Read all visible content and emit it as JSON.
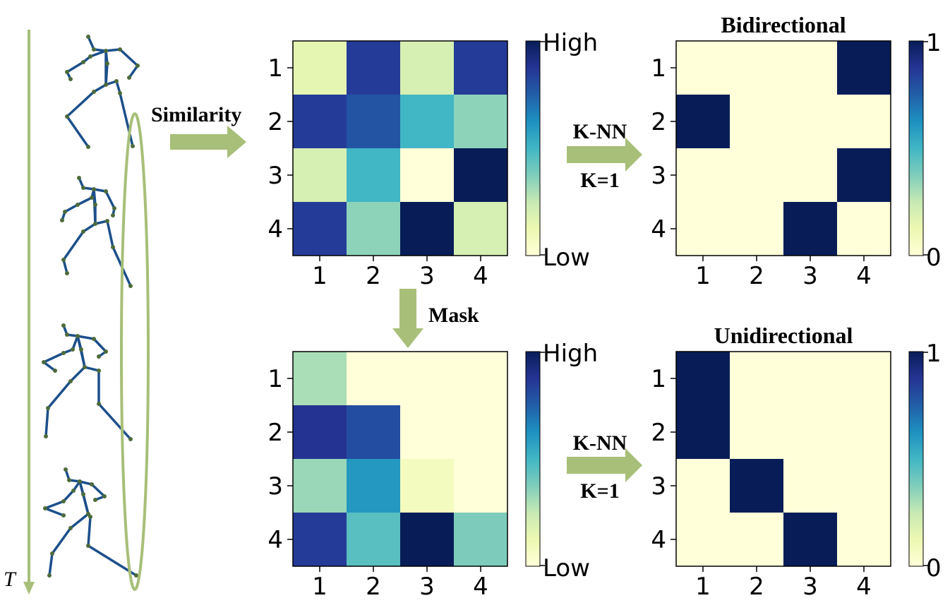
{
  "time_axis": {
    "label": "T"
  },
  "arrows": {
    "similarity": "Similarity",
    "mask": "Mask",
    "knn_top": {
      "line1": "K-NN",
      "line2": "K=1"
    },
    "knn_bottom": {
      "line1": "K-NN",
      "line2": "K=1"
    }
  },
  "colors": {
    "arrow_green": "#a7bf78",
    "skeleton_bone": "#1c4f8b",
    "skeleton_joint": "#4d6b3a",
    "colormap": [
      "#ffffd9",
      "#edf8b1",
      "#c7e9b4",
      "#7fcdbb",
      "#41b6c4",
      "#1d91c0",
      "#225ea8",
      "#253494",
      "#081d58"
    ]
  },
  "chart_data": [
    {
      "type": "heatmap",
      "name_tag": "similarity-matrix",
      "title": "",
      "rows": [
        "1",
        "2",
        "3",
        "4"
      ],
      "cols": [
        "1",
        "2",
        "3",
        "4"
      ],
      "values": [
        [
          0.15,
          0.85,
          0.2,
          0.85
        ],
        [
          0.85,
          0.78,
          0.5,
          0.35
        ],
        [
          0.2,
          0.5,
          0.0,
          1.0
        ],
        [
          0.85,
          0.35,
          1.0,
          0.2
        ]
      ],
      "colorbar": {
        "max_label": "High",
        "min_label": "Low"
      }
    },
    {
      "type": "heatmap",
      "name_tag": "bidirectional-matrix",
      "title": "Bidirectional",
      "rows": [
        "1",
        "2",
        "3",
        "4"
      ],
      "cols": [
        "1",
        "2",
        "3",
        "4"
      ],
      "values": [
        [
          0,
          0,
          0,
          1
        ],
        [
          1,
          0,
          0,
          0
        ],
        [
          0,
          0,
          0,
          1
        ],
        [
          0,
          0,
          1,
          0
        ]
      ],
      "colorbar": {
        "max_label": "1",
        "min_label": "0"
      }
    },
    {
      "type": "heatmap",
      "name_tag": "masked-matrix",
      "title": "",
      "rows": [
        "1",
        "2",
        "3",
        "4"
      ],
      "cols": [
        "1",
        "2",
        "3",
        "4"
      ],
      "values": [
        [
          0.3,
          0.0,
          0.0,
          0.0
        ],
        [
          0.88,
          0.8,
          0.0,
          0.0
        ],
        [
          0.33,
          0.6,
          0.08,
          0.0
        ],
        [
          0.85,
          0.45,
          1.0,
          0.38
        ]
      ],
      "colorbar": {
        "max_label": "High",
        "min_label": "Low"
      }
    },
    {
      "type": "heatmap",
      "name_tag": "unidirectional-matrix",
      "title": "Unidirectional",
      "rows": [
        "1",
        "2",
        "3",
        "4"
      ],
      "cols": [
        "1",
        "2",
        "3",
        "4"
      ],
      "values": [
        [
          1,
          0,
          0,
          0
        ],
        [
          1,
          0,
          0,
          0
        ],
        [
          0,
          1,
          0,
          0
        ],
        [
          0,
          0,
          1,
          0
        ]
      ],
      "colorbar": {
        "max_label": "1",
        "min_label": "0"
      }
    }
  ]
}
